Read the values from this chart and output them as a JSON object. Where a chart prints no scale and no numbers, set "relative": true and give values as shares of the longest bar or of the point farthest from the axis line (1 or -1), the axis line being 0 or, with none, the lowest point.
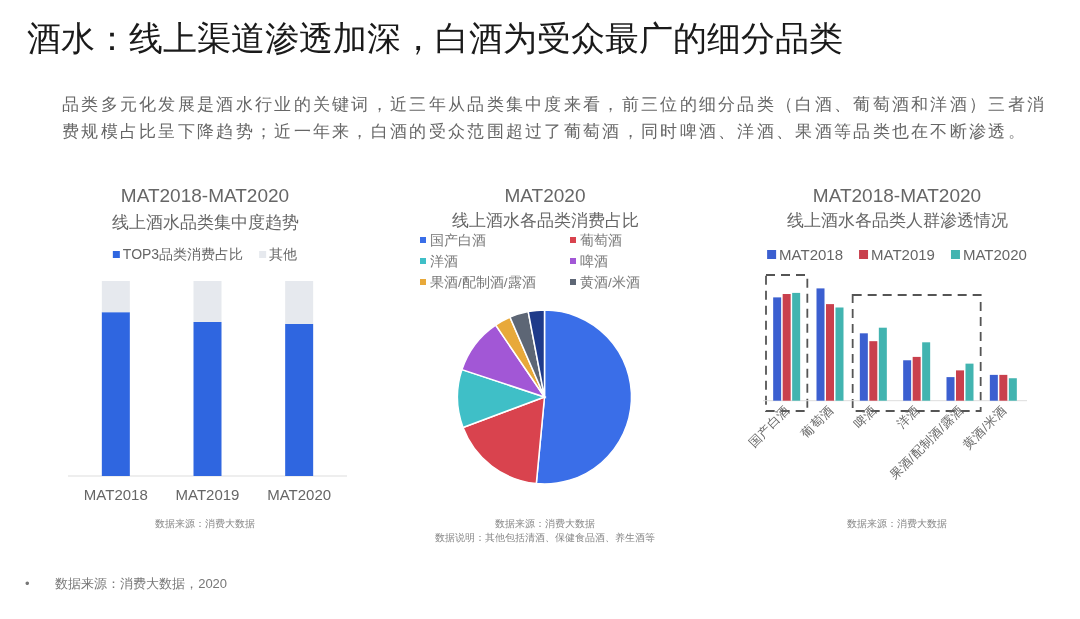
{
  "chart_data": [
    {
      "type": "other",
      "title": "酒水：线上渠道渗透加深，白酒为受众最广的细分品类",
      "subtitle": "品类多元化发展是酒水行业的关键词，近三年从品类集中度来看，前三位的细分品类（白酒、葡萄酒和洋酒）三者消费规模占比呈下降趋势；近一年来，白酒的受众范围超过了葡萄酒，同时啤酒、洋酒、果酒等品类也在不断渗透。",
      "annotations": [
        "• 数据来源：消费大数据，2020"
      ]
    },
    {
      "type": "bar",
      "title": "MAT2018-MAT2020",
      "subtitle": "线上酒水品类集中度趋势",
      "categories": [
        "MAT2018",
        "MAT2019",
        "MAT2020"
      ],
      "stacked": true,
      "relative": true,
      "legend": "top",
      "series": [
        {
          "name": "TOP3品类消费占比",
          "color": "#2f66e0",
          "values": [
            0.84,
            0.79,
            0.78
          ]
        },
        {
          "name": "其他",
          "color": "#e6e9ee",
          "values": [
            0.16,
            0.21,
            0.22
          ]
        }
      ],
      "annotations": [
        "数据来源：消费大数据"
      ]
    },
    {
      "type": "pie",
      "title": "MAT2020",
      "subtitle": "线上酒水各品类消费占比",
      "categories": [
        "国产白酒",
        "葡萄酒",
        "洋酒",
        "啤酒",
        "果酒/配制酒/露酒",
        "黄酒/米酒",
        null
      ],
      "values": [
        51.5,
        17.8,
        10.8,
        10.4,
        3.0,
        3.5,
        3.0
      ],
      "colors": [
        "#3a6ee8",
        "#d9434e",
        "#3fbfc7",
        "#a257d6",
        "#e8a93a",
        "#5d6675",
        "#1e3a8a"
      ],
      "legend": "top",
      "annotations": [
        "数据来源：消费大数据",
        "数据说明：其他包括清酒、保健食品酒、养生酒等"
      ]
    },
    {
      "type": "bar",
      "title": "MAT2018-MAT2020",
      "subtitle": "线上酒水各品类人群渗透情况",
      "categories": [
        "国产白酒",
        "葡萄酒",
        "啤酒",
        "洋酒",
        "果酒/配制酒/露酒",
        "黄酒/米酒"
      ],
      "relative": true,
      "legend": "top",
      "series": [
        {
          "name": "MAT2018",
          "color": "#3b5fd0",
          "values": [
            0.92,
            1.0,
            0.6,
            0.36,
            0.21,
            0.23
          ]
        },
        {
          "name": "MAT2019",
          "color": "#c9404d",
          "values": [
            0.95,
            0.86,
            0.53,
            0.39,
            0.27,
            0.23
          ]
        },
        {
          "name": "MAT2020",
          "color": "#42b4b0",
          "values": [
            0.96,
            0.83,
            0.65,
            0.52,
            0.33,
            0.2
          ]
        }
      ],
      "annotations": [
        "数据来源：消费大数据"
      ]
    }
  ]
}
